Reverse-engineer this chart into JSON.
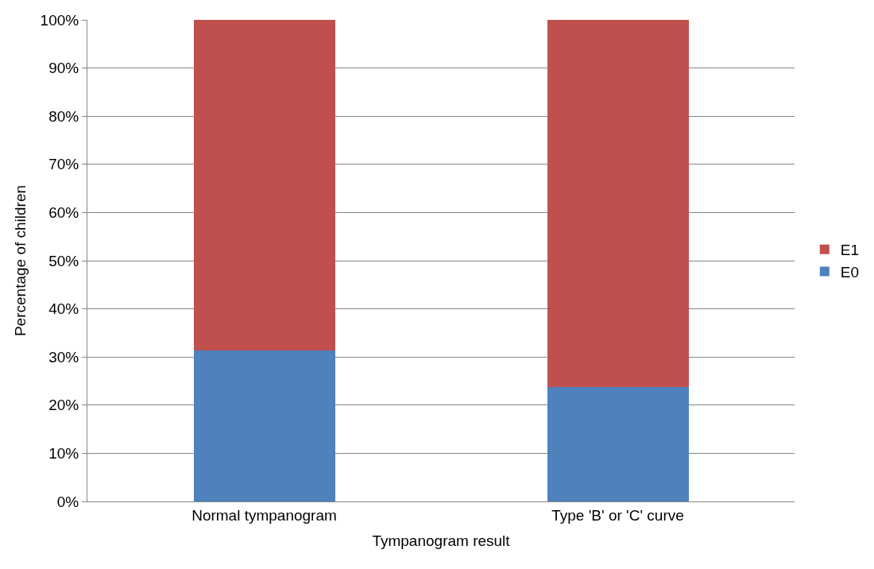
{
  "chart_data": {
    "type": "bar",
    "stacked": true,
    "xlabel": "Tympanogram result",
    "ylabel": "Percentage of children",
    "categories": [
      "Normal tympanogram",
      "Type 'B' or 'C' curve"
    ],
    "series": [
      {
        "name": "E0",
        "color": "#4f81bd",
        "values": [
          31.4,
          23.7
        ]
      },
      {
        "name": "E1",
        "color": "#c0504d",
        "values": [
          68.6,
          76.3
        ]
      }
    ],
    "ylim": [
      0,
      100
    ],
    "yticks": [
      {
        "value": 0,
        "label": "0%"
      },
      {
        "value": 10,
        "label": "10%"
      },
      {
        "value": 20,
        "label": "20%"
      },
      {
        "value": 30,
        "label": "30%"
      },
      {
        "value": 40,
        "label": "40%"
      },
      {
        "value": 50,
        "label": "50%"
      },
      {
        "value": 60,
        "label": "60%"
      },
      {
        "value": 70,
        "label": "70%"
      },
      {
        "value": 80,
        "label": "80%"
      },
      {
        "value": 90,
        "label": "90%"
      },
      {
        "value": 100,
        "label": "100%"
      }
    ],
    "grid": "y",
    "legend": "right"
  }
}
